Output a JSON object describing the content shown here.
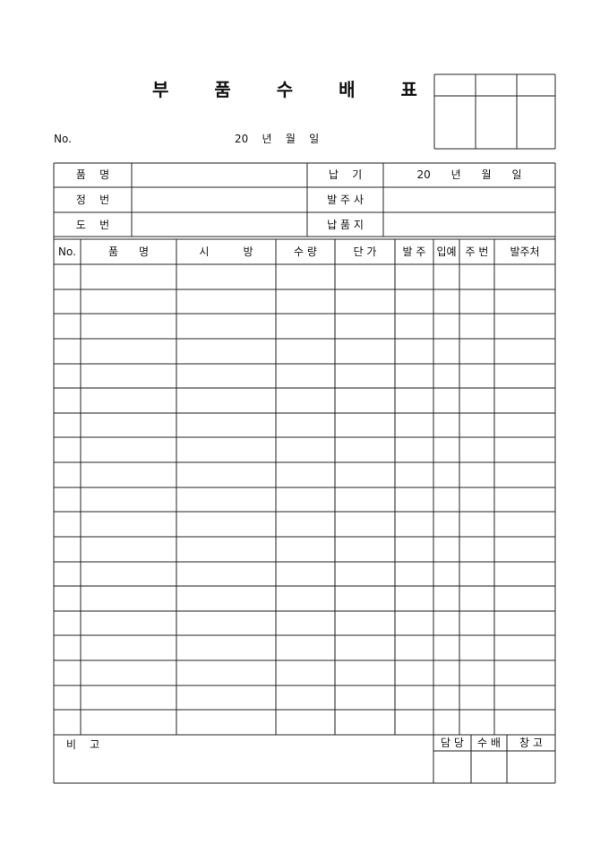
{
  "title": "부 품 수 배 표",
  "header": {
    "no_label": "No.",
    "date": "20    년    월    일"
  },
  "info": {
    "rows": [
      {
        "left_label": "품    명",
        "right_label": "납    기",
        "right_value": "20      년      월      일"
      },
      {
        "left_label": "정    번",
        "right_label": "발 주 사",
        "right_value": ""
      },
      {
        "left_label": "도    번",
        "right_label": "납 품 지",
        "right_value": ""
      }
    ]
  },
  "table": {
    "columns": [
      "No.",
      "품      명",
      "시          방",
      "수 량",
      "단 가",
      "발 주",
      "입예",
      "주 번",
      "발주처"
    ],
    "row_count": 19
  },
  "footer": {
    "remarks_label": "비    고",
    "approval": [
      "담 당",
      "수 배",
      "창 고"
    ]
  }
}
